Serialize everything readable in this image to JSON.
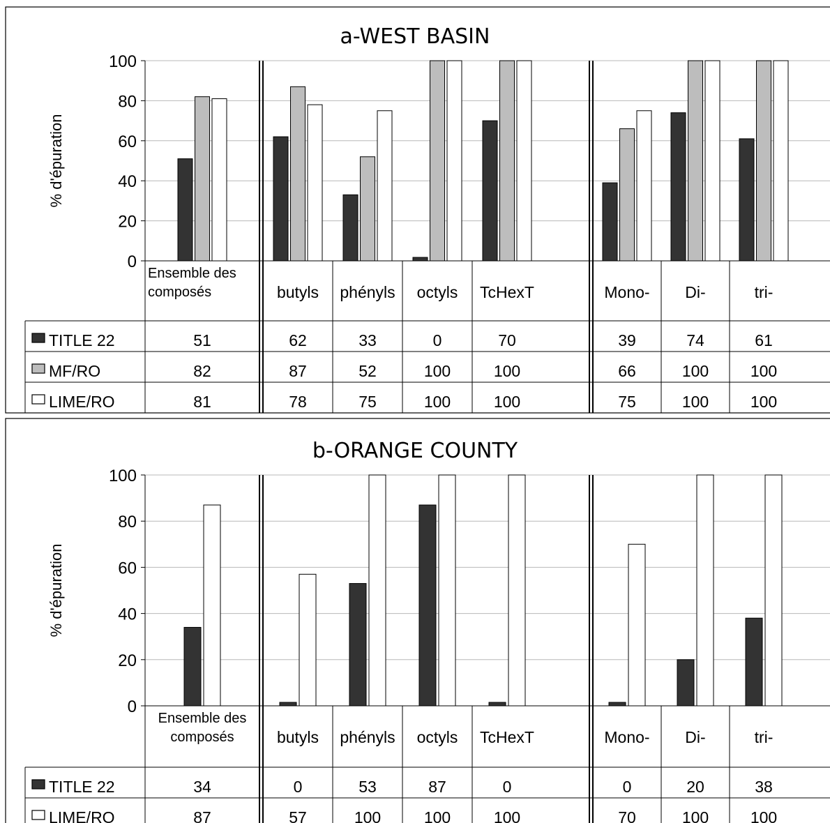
{
  "chart_data": [
    {
      "type": "bar",
      "title": "a-WEST BASIN",
      "ylabel": "% d'épuration",
      "ylim": [
        0,
        100
      ],
      "yticks": [
        "0",
        "20",
        "40",
        "60",
        "80",
        "100"
      ],
      "grid": true,
      "groups": [
        {
          "categories": [
            "Ensemble des composés"
          ],
          "lines": [
            [
              "Ensemble des",
              "composés"
            ]
          ]
        },
        {
          "categories": [
            "butyls",
            "phényls",
            "octyls",
            "TcHexT"
          ]
        },
        {
          "categories": [
            "Mono-",
            "Di-",
            "tri-"
          ]
        }
      ],
      "series": [
        {
          "name": "TITLE 22",
          "color": "#333333",
          "values": [
            51,
            62,
            33,
            0,
            70,
            39,
            74,
            61
          ],
          "labels": [
            "51",
            "62",
            "33",
            "0",
            "70",
            "39",
            "74",
            "61"
          ]
        },
        {
          "name": "MF/RO",
          "color": "#bdbdbd",
          "values": [
            82,
            87,
            52,
            100,
            100,
            66,
            100,
            100
          ],
          "labels": [
            "82",
            "87",
            "52",
            "100",
            "100",
            "66",
            "100",
            "100"
          ]
        },
        {
          "name": "LIME/RO",
          "color": "#ffffff",
          "values": [
            81,
            78,
            75,
            100,
            100,
            75,
            100,
            100
          ],
          "labels": [
            "81",
            "78",
            "75",
            "100",
            "100",
            "75",
            "100",
            "100"
          ]
        }
      ]
    },
    {
      "type": "bar",
      "title": "b-ORANGE COUNTY",
      "ylabel": "% d'épuration",
      "ylim": [
        0,
        100
      ],
      "yticks": [
        "0",
        "20",
        "40",
        "60",
        "80",
        "100"
      ],
      "grid": true,
      "groups": [
        {
          "categories": [
            "Ensemble des composés"
          ],
          "lines": [
            [
              "Ensemble des",
              "composés"
            ]
          ]
        },
        {
          "categories": [
            "butyls",
            "phényls",
            "octyls",
            "TcHexT"
          ]
        },
        {
          "categories": [
            "Mono-",
            "Di-",
            "tri-"
          ]
        }
      ],
      "series": [
        {
          "name": "TITLE 22",
          "color": "#333333",
          "values": [
            34,
            0,
            53,
            87,
            0,
            0,
            20,
            38
          ],
          "labels": [
            "34",
            "0",
            "53",
            "87",
            "0",
            "0",
            "20",
            "38"
          ]
        },
        {
          "name": "LIME/RO",
          "color": "#ffffff",
          "values": [
            87,
            57,
            100,
            100,
            100,
            70,
            100,
            100
          ],
          "labels": [
            "87",
            "57",
            "100",
            "100",
            "100",
            "70",
            "100",
            "100"
          ]
        }
      ]
    }
  ]
}
